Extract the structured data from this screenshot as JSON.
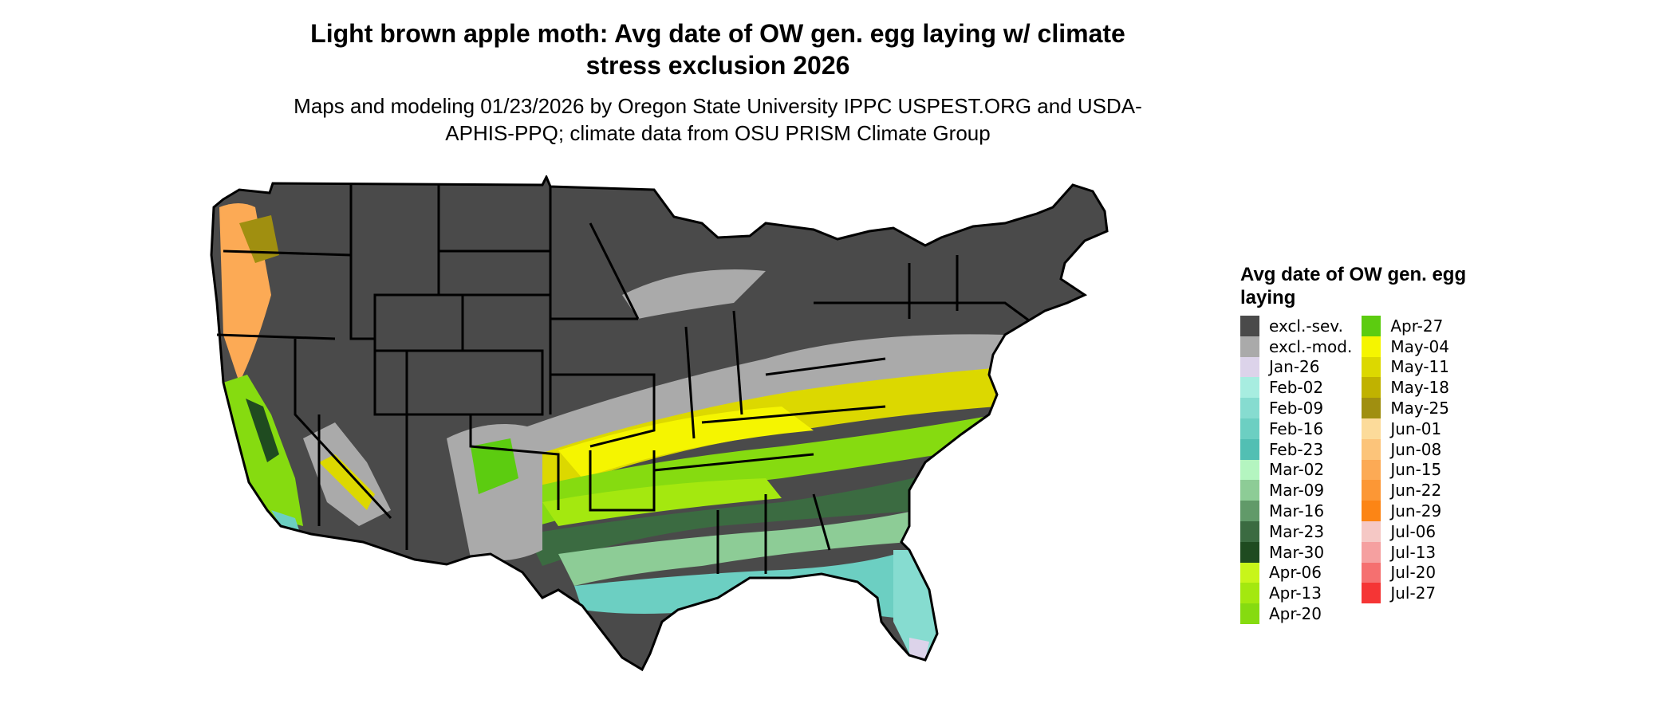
{
  "title": "Light brown apple moth: Avg date of OW gen. egg laying w/ climate stress exclusion 2026",
  "subtitle": "Maps and modeling 01/23/2026 by Oregon State University IPPC USPEST.ORG and USDA-APHIS-PPQ; climate data from OSU PRISM Climate Group",
  "legend": {
    "title": "Avg date of OW gen. egg laying",
    "items": [
      {
        "label": "excl.-sev.",
        "color": "#4a4a4a"
      },
      {
        "label": "excl.-mod.",
        "color": "#aaaaaa"
      },
      {
        "label": "Jan-26",
        "color": "#dcd3ea"
      },
      {
        "label": "Feb-02",
        "color": "#a7ede0"
      },
      {
        "label": "Feb-09",
        "color": "#86dcd0"
      },
      {
        "label": "Feb-16",
        "color": "#6ccfc2"
      },
      {
        "label": "Feb-23",
        "color": "#52bfb3"
      },
      {
        "label": "Mar-02",
        "color": "#b4f5c0"
      },
      {
        "label": "Mar-09",
        "color": "#8dcc96"
      },
      {
        "label": "Mar-16",
        "color": "#619a69"
      },
      {
        "label": "Mar-23",
        "color": "#3b6b41"
      },
      {
        "label": "Mar-30",
        "color": "#1f4b20"
      },
      {
        "label": "Apr-06",
        "color": "#c8f51a"
      },
      {
        "label": "Apr-13",
        "color": "#a4e80f"
      },
      {
        "label": "Apr-20",
        "color": "#86db10"
      },
      {
        "label": "Apr-27",
        "color": "#5ccc10"
      },
      {
        "label": "May-04",
        "color": "#f5f500"
      },
      {
        "label": "May-11",
        "color": "#dcd800"
      },
      {
        "label": "May-18",
        "color": "#c0b200"
      },
      {
        "label": "May-25",
        "color": "#a08f10"
      },
      {
        "label": "Jun-01",
        "color": "#fcdb9a"
      },
      {
        "label": "Jun-08",
        "color": "#fcc47a"
      },
      {
        "label": "Jun-15",
        "color": "#fcaa55"
      },
      {
        "label": "Jun-22",
        "color": "#fc9735"
      },
      {
        "label": "Jun-29",
        "color": "#fc8515"
      },
      {
        "label": "Jul-06",
        "color": "#f5c8c5"
      },
      {
        "label": "Jul-13",
        "color": "#f5a0a0"
      },
      {
        "label": "Jul-20",
        "color": "#f57070"
      },
      {
        "label": "Jul-27",
        "color": "#f53535"
      }
    ]
  }
}
